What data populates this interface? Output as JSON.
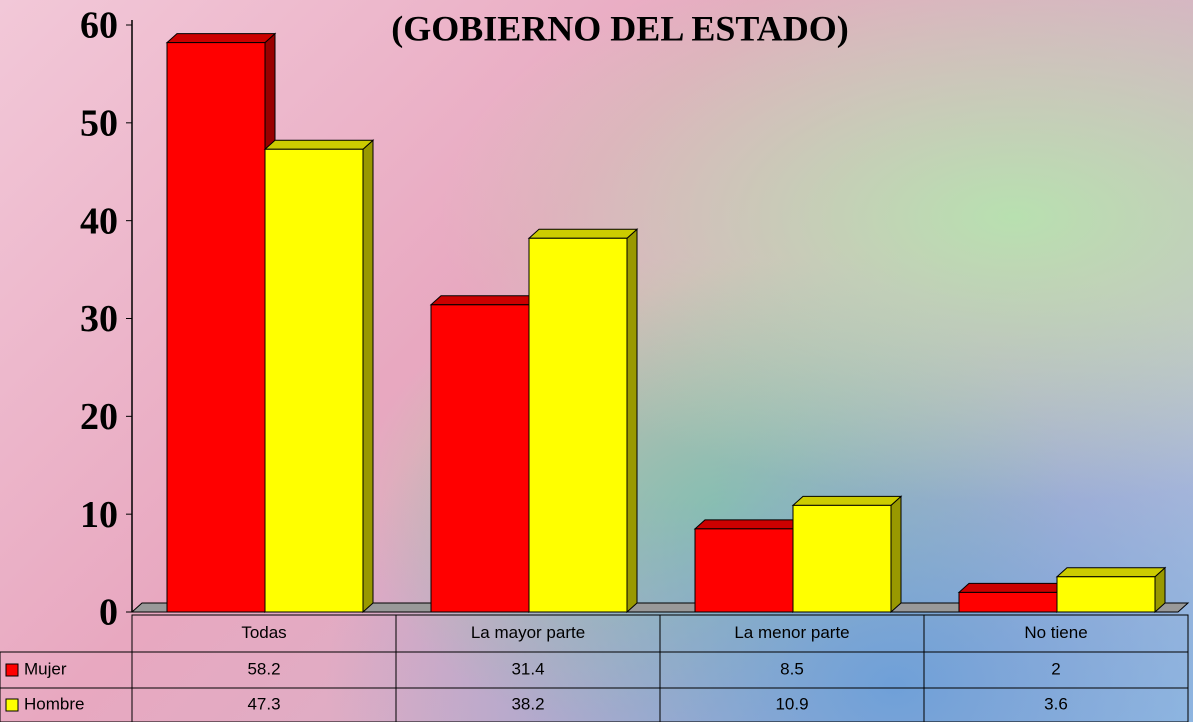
{
  "chart_data": {
    "type": "bar",
    "title": "(GOBIERNO DEL ESTADO)",
    "categories": [
      "Todas",
      "La mayor parte",
      "La menor parte",
      "No tiene"
    ],
    "series": [
      {
        "name": "Mujer",
        "color": "#ff0000",
        "values": [
          58.2,
          31.4,
          8.5,
          2
        ]
      },
      {
        "name": "Hombre",
        "color": "#ffff00",
        "values": [
          47.3,
          38.2,
          10.9,
          3.6
        ]
      }
    ],
    "ylim": [
      0,
      60
    ],
    "yticks": [
      0,
      10,
      20,
      30,
      40,
      50,
      60
    ],
    "data_table": true
  }
}
